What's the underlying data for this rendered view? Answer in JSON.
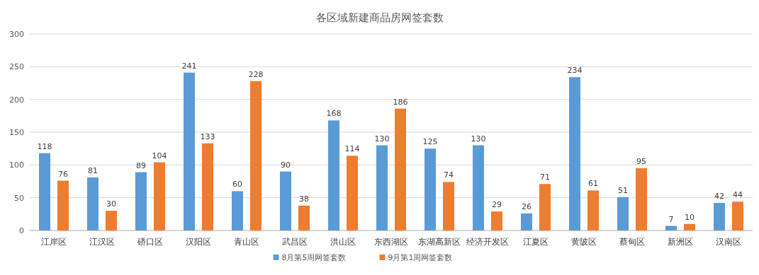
{
  "chart_data": {
    "type": "bar",
    "title": "各区域新建商品房网签套数",
    "categories": [
      "江岸区",
      "江汉区",
      "硚口区",
      "汉阳区",
      "青山区",
      "武昌区",
      "洪山区",
      "东西湖区",
      "东湖高新区",
      "经济开发区",
      "江夏区",
      "黄陂区",
      "蔡甸区",
      "新洲区",
      "汉南区"
    ],
    "series": [
      {
        "name": "8月第5周网签套数",
        "color": "#5b9bd5",
        "values": [
          118,
          81,
          89,
          241,
          60,
          90,
          168,
          130,
          125,
          130,
          26,
          234,
          51,
          7,
          42
        ]
      },
      {
        "name": "9月第1周网签套数",
        "color": "#ed7d31",
        "values": [
          76,
          30,
          104,
          133,
          228,
          38,
          114,
          186,
          74,
          29,
          71,
          61,
          95,
          10,
          44
        ]
      }
    ],
    "ylim": [
      0,
      300
    ],
    "yticks": [
      0,
      50,
      100,
      150,
      200,
      250,
      300
    ],
    "grid": "y",
    "legend": "bottom",
    "data_labels": true
  }
}
